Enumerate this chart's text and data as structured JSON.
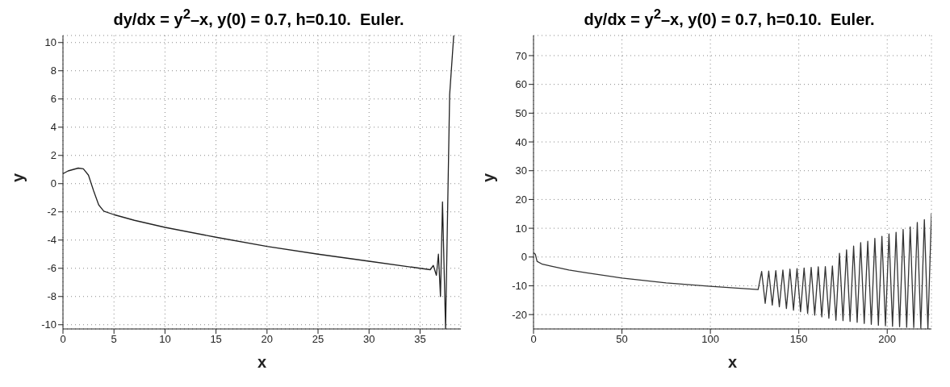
{
  "chart_data": [
    {
      "type": "line",
      "title": "dy/dx = y$^{2}$–x, y(0) = 0.7, h=0.10.  Euler.",
      "xlabel": "x",
      "ylabel": "y",
      "series": [
        {
          "color": "#222222",
          "x": [
            0,
            0.5,
            1,
            1.5,
            2,
            2.5,
            3,
            3.5,
            4,
            5,
            7,
            10,
            15,
            20,
            25,
            30,
            35,
            36,
            36.3,
            36.6,
            36.8,
            37.0,
            37.2,
            37.5,
            37.9,
            38.3
          ],
          "values": [
            0.7,
            0.9,
            1.0,
            1.1,
            1.05,
            0.6,
            -0.5,
            -1.5,
            -1.95,
            -2.2,
            -2.6,
            -3.1,
            -3.8,
            -4.45,
            -5.0,
            -5.5,
            -6.0,
            -6.1,
            -5.8,
            -6.5,
            -5.0,
            -8.0,
            -1.3,
            -10.3,
            6.3,
            10.5
          ]
        }
      ],
      "xlim": [
        0,
        39
      ],
      "xticks": [
        0,
        5,
        10,
        15,
        20,
        25,
        30,
        35
      ],
      "ylim": [
        -10.3,
        10.5
      ],
      "yticks": [
        -10,
        -8,
        -6,
        -4,
        -2,
        0,
        2,
        4,
        6,
        8,
        10
      ],
      "grid": true,
      "marker": "none",
      "line_style": "solid"
    },
    {
      "type": "line",
      "title": "dy/dx = y$^{2}$–x, y(0) = 0.7, h=0.10.  Euler.",
      "xlabel": "x",
      "ylabel": "y",
      "series": [
        {
          "color": "#333333",
          "x": [
            0,
            1,
            2,
            5,
            10,
            20,
            30,
            50,
            75,
            100,
            127,
            129,
            131,
            133,
            135,
            137,
            139,
            141,
            143,
            145,
            147,
            149,
            151,
            153,
            155,
            157,
            159,
            161,
            163,
            165,
            167,
            169,
            171,
            173,
            175,
            177,
            179,
            181,
            183,
            185,
            187,
            189,
            191,
            193,
            195,
            197,
            199,
            201,
            203,
            205,
            207,
            209,
            211,
            213,
            215,
            217,
            219,
            221,
            223,
            225
          ],
          "values": [
            1.5,
            1,
            -1.5,
            -2.5,
            -3.2,
            -4.5,
            -5.5,
            -7.3,
            -9,
            -10.2,
            -11.3,
            -5,
            -16.1,
            -4.9,
            -16.7,
            -4.7,
            -17.3,
            -4.5,
            -17.9,
            -4.2,
            -18.5,
            -4.0,
            -19.0,
            -3.8,
            -19.6,
            -3.6,
            -20.2,
            -3.4,
            -20.8,
            -3.3,
            -21.3,
            -3.1,
            -22,
            1.3,
            -22.1,
            2.5,
            -22.4,
            3.8,
            -22.7,
            5.0,
            -23.1,
            5.5,
            -23.4,
            6.5,
            -23.7,
            7.2,
            -23.9,
            8.0,
            -24.1,
            8.6,
            -24.2,
            9.6,
            -24.4,
            10.5,
            -24.5,
            12.0,
            -24.7,
            13.0,
            -24.9,
            15.0
          ]
        }
      ],
      "xlim": [
        0,
        225
      ],
      "xticks": [
        0,
        50,
        100,
        150,
        200
      ],
      "ylim": [
        -25,
        77
      ],
      "yticks": [
        -20,
        -10,
        0,
        10,
        20,
        30,
        40,
        50,
        60,
        70
      ],
      "grid": true,
      "marker": "none",
      "line_style": "solid"
    }
  ]
}
